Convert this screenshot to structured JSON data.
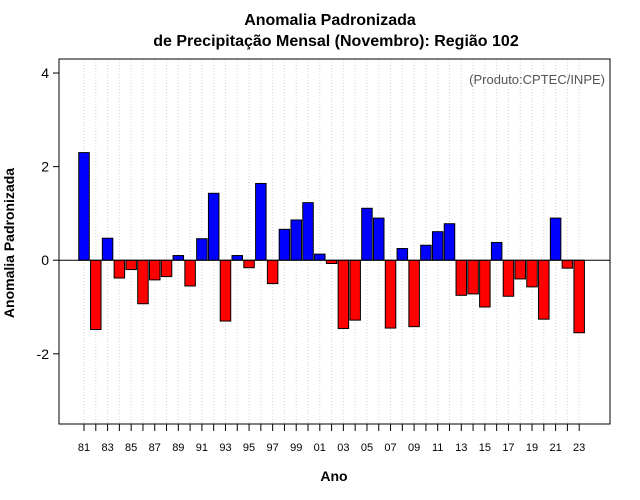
{
  "chart_data": {
    "type": "bar",
    "title_lines": [
      "Anomalia Padronizada",
      "de Precipitação Mensal (Novembro): Região 102"
    ],
    "xlabel": "Ano",
    "ylabel": "Anomalia Padronizada",
    "credit": "(Produto:CPTEC/INPE)",
    "ylim": [
      -3.5,
      4.3
    ],
    "yticks": [
      -2,
      0,
      2,
      4
    ],
    "ytick_labels": [
      "-2",
      "0",
      "2",
      "4"
    ],
    "grid": "vertical-dotted",
    "colors": {
      "positive": "#0000ff",
      "negative": "#ff0000",
      "outline": "#000000"
    },
    "categories": [
      "81",
      "82",
      "83",
      "84",
      "85",
      "86",
      "87",
      "88",
      "89",
      "90",
      "91",
      "92",
      "93",
      "94",
      "95",
      "96",
      "97",
      "98",
      "99",
      "00",
      "01",
      "02",
      "03",
      "04",
      "05",
      "06",
      "07",
      "08",
      "09",
      "10",
      "11",
      "12",
      "13",
      "14",
      "15",
      "16",
      "17",
      "18",
      "19",
      "20",
      "21",
      "22",
      "23"
    ],
    "tick_labels": [
      "81",
      "83",
      "85",
      "87",
      "89",
      "91",
      "93",
      "95",
      "97",
      "99",
      "01",
      "03",
      "05",
      "07",
      "09",
      "11",
      "13",
      "15",
      "17",
      "19",
      "21",
      "23"
    ],
    "values": [
      2.3,
      -1.48,
      0.47,
      -0.38,
      -0.2,
      -0.93,
      -0.42,
      -0.35,
      0.1,
      -0.55,
      0.46,
      1.43,
      -1.3,
      0.1,
      -0.16,
      1.64,
      -0.5,
      0.66,
      0.86,
      1.23,
      0.13,
      -0.07,
      -1.46,
      -1.28,
      1.11,
      0.9,
      -1.45,
      0.25,
      -1.42,
      0.32,
      0.61,
      0.78,
      -0.75,
      -0.72,
      -1.0,
      0.38,
      -0.77,
      -0.4,
      -0.57,
      -1.26,
      0.9,
      -0.17,
      -1.55
    ]
  }
}
